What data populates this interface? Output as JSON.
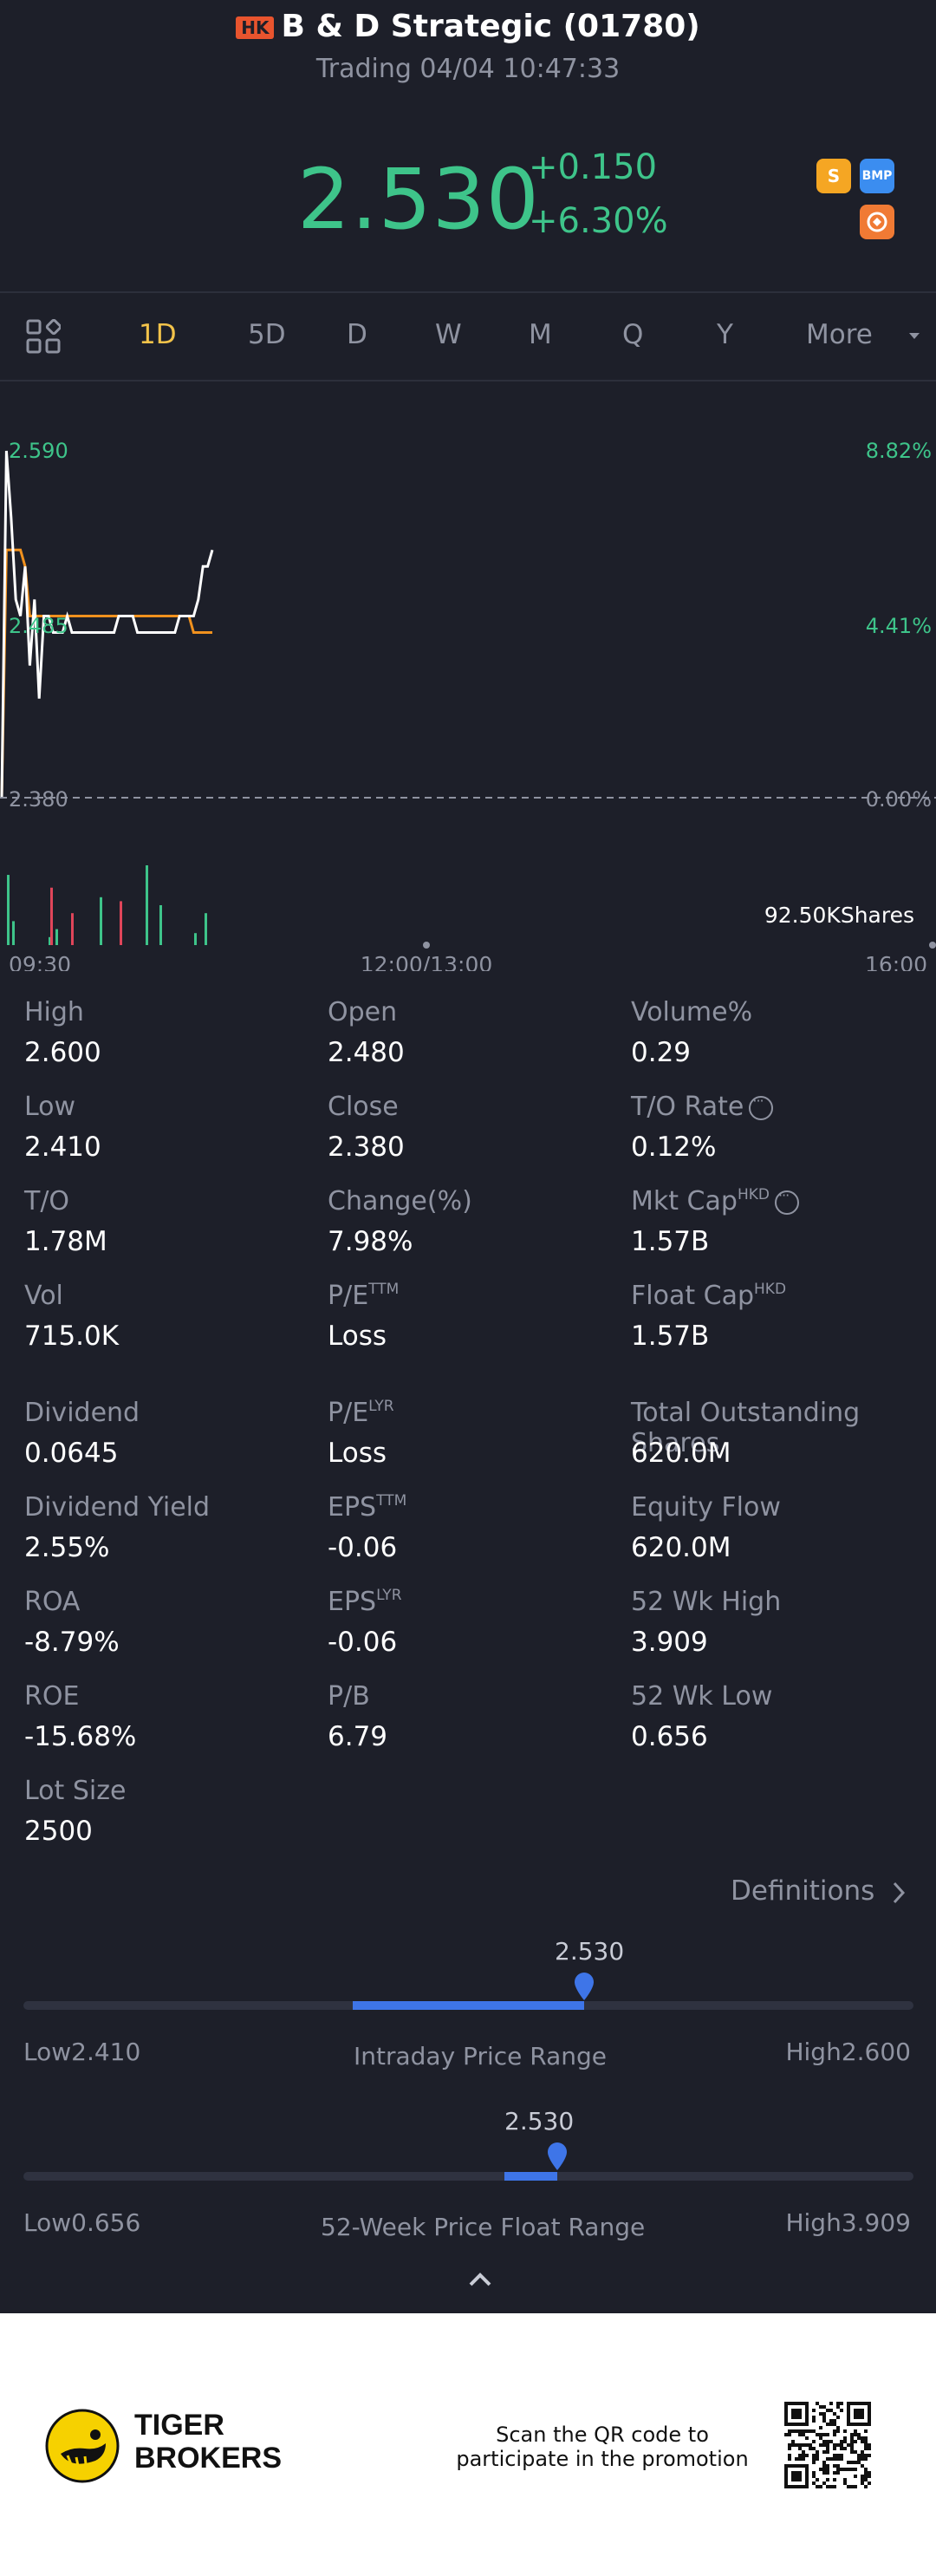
{
  "header": {
    "market_badge": "HK",
    "title": "B & D Strategic (01780)",
    "subtitle": "Trading 04/04 10:47:33",
    "price": "2.530",
    "change": "+0.150",
    "change_pct": "+6.30%",
    "badges": [
      {
        "label": "S",
        "color": "#f5a623"
      },
      {
        "label": "BMP",
        "color": "#3b8df0"
      },
      {
        "label": "icon",
        "color": "#f07a34"
      }
    ]
  },
  "tabs": [
    "1D",
    "5D",
    "D",
    "W",
    "M",
    "Q",
    "Y",
    "More"
  ],
  "chart": {
    "y_labels_left": [
      "2.590",
      "2.485",
      "2.380"
    ],
    "y_labels_right": [
      "8.82%",
      "4.41%",
      "0.00%"
    ],
    "volume_label": "92.50KShares",
    "x_labels": [
      "09:30",
      "12:00/13:00",
      "16:00"
    ]
  },
  "chart_data": {
    "type": "line",
    "price_axis": {
      "min": 2.38,
      "mid": 2.485,
      "max": 2.59
    },
    "pct_axis": {
      "min": 0.0,
      "mid": 4.41,
      "max": 8.82
    },
    "series": [
      {
        "color": "#ffffff",
        "values": [
          2.38,
          2.59,
          2.55,
          2.5,
          2.49,
          2.52,
          2.46,
          2.5,
          2.44,
          2.49,
          2.49,
          2.48,
          2.48,
          2.48,
          2.49,
          2.48,
          2.48,
          2.48,
          2.48,
          2.48,
          2.48,
          2.48,
          2.48,
          2.48,
          2.48,
          2.49,
          2.49,
          2.49,
          2.49,
          2.48,
          2.48,
          2.48,
          2.48,
          2.48,
          2.48,
          2.48,
          2.48,
          2.48,
          2.49,
          2.49,
          2.49,
          2.49,
          2.5,
          2.52,
          2.52,
          2.53
        ]
      },
      {
        "color": "#f0911e",
        "values": [
          2.38,
          2.53,
          2.53,
          2.53,
          2.53,
          2.52,
          2.49,
          2.49,
          2.49,
          2.49,
          2.49,
          2.49,
          2.49,
          2.49,
          2.49,
          2.49,
          2.49,
          2.49,
          2.49,
          2.49,
          2.49,
          2.49,
          2.49,
          2.49,
          2.49,
          2.49,
          2.49,
          2.49,
          2.49,
          2.49,
          2.49,
          2.49,
          2.49,
          2.49,
          2.49,
          2.49,
          2.49,
          2.49,
          2.49,
          2.49,
          2.49,
          2.48,
          2.48,
          2.48,
          2.48,
          2.48
        ]
      }
    ],
    "volume": [
      {
        "v": 88,
        "c": "#3ec48a"
      },
      {
        "v": 30,
        "c": "#3ec48a"
      },
      {
        "v": 10,
        "c": "#3ec48a"
      },
      {
        "v": 72,
        "c": "#e0455a"
      },
      {
        "v": 20,
        "c": "#3ec48a"
      },
      {
        "v": 40,
        "c": "#e0455a"
      },
      {
        "v": 60,
        "c": "#3ec48a"
      },
      {
        "v": 55,
        "c": "#e0455a"
      },
      {
        "v": 100,
        "c": "#3ec48a"
      },
      {
        "v": 50,
        "c": "#3ec48a"
      },
      {
        "v": 15,
        "c": "#3ec48a"
      },
      {
        "v": 40,
        "c": "#3ec48a"
      }
    ]
  },
  "stats": [
    [
      {
        "label": "High",
        "value": "2.600"
      },
      {
        "label": "Open",
        "value": "2.480"
      },
      {
        "label": "Volume%",
        "value": "0.29"
      }
    ],
    [
      {
        "label": "Low",
        "value": "2.410"
      },
      {
        "label": "Close",
        "value": "2.380"
      },
      {
        "label": "T/O Rate",
        "value": "0.12%"
      }
    ],
    [
      {
        "label": "T/O",
        "value": "1.78M"
      },
      {
        "label": "Change(%)",
        "value": "7.98%"
      },
      {
        "label": "Mkt Cap",
        "value": "1.57B"
      }
    ],
    [
      {
        "label": "Vol",
        "value": "715.0K"
      },
      {
        "label": "P/E",
        "value": "Loss"
      },
      {
        "label": "Float Cap",
        "value": "1.57B"
      }
    ],
    [
      {
        "label": "Dividend",
        "value": "0.0645"
      },
      {
        "label": "P/E",
        "value": "Loss"
      },
      {
        "label": "Total Outstanding Shares",
        "value": "620.0M"
      }
    ],
    [
      {
        "label": "Dividend Yield",
        "value": "2.55%"
      },
      {
        "label": "EPS",
        "value": "-0.06"
      },
      {
        "label": "Equity Flow",
        "value": "620.0M"
      }
    ],
    [
      {
        "label": "ROA",
        "value": "-8.79%"
      },
      {
        "label": "EPS",
        "value": "-0.06"
      },
      {
        "label": "52 Wk High",
        "value": "3.909"
      }
    ],
    [
      {
        "label": "ROE",
        "value": "-15.68%"
      },
      {
        "label": "P/B",
        "value": "6.79"
      },
      {
        "label": "52 Wk Low",
        "value": "0.656"
      }
    ],
    [
      {
        "label": "Lot Size",
        "value": "2500"
      }
    ]
  ],
  "sup": {
    "hkd": "HKD",
    "ttm": "TTM",
    "lyr": "LYR"
  },
  "definitions": "Definitions",
  "intraday": {
    "label": "Intraday Price Range",
    "low_text": "Low",
    "low": "2.410",
    "high_text": "High",
    "high": "2.600",
    "current": "2.530",
    "fill_start": 0.37,
    "fill_end": 0.63
  },
  "week52": {
    "label": "52-Week Price Float Range",
    "low_text": "Low",
    "low": "0.656",
    "high_text": "High",
    "high": "3.909",
    "current": "2.530",
    "fill_start": 0.54,
    "fill_end": 0.6
  },
  "footer": {
    "brand_line1": "TIGER",
    "brand_line2": "BROKERS",
    "promo_line1": "Scan the QR code to",
    "promo_line2": "participate in the promotion"
  }
}
